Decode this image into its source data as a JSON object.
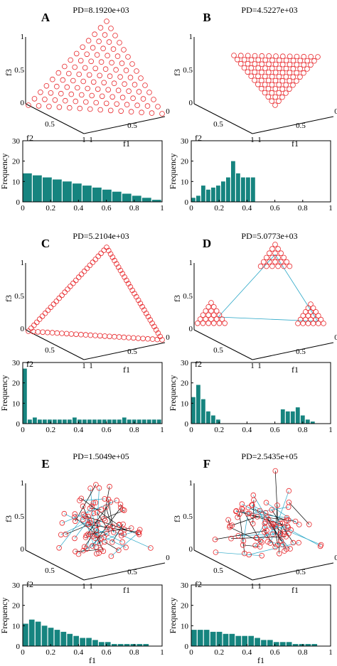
{
  "figure": {
    "panel_count": 6
  },
  "colors": {
    "bar": "#16847f",
    "marker": "#e8282c",
    "link": "#2aa7c7",
    "axis": "#000000"
  },
  "chart_data": [
    {
      "panel": "A",
      "title": "PD=8.1920e+03",
      "type": "scatter",
      "scatter_axes": {
        "f1": "f1",
        "f2": "f2",
        "f3": "f3",
        "ticks": [
          "0",
          "0.5",
          "1"
        ]
      },
      "scatter_layout": "uniform-grid-triangle",
      "histogram": {
        "type": "bar",
        "ylabel": "Frequency",
        "xlim": [
          0,
          1
        ],
        "ylim": [
          0,
          30
        ],
        "xticks": [
          "0",
          "0.2",
          "0.4",
          "0.6",
          "0.8",
          "1"
        ],
        "yticks": [
          "0",
          "10",
          "20",
          "30"
        ],
        "bin_width": 0.0714,
        "values": [
          14,
          13,
          12,
          11,
          10,
          9,
          8,
          7,
          6,
          5,
          4,
          3,
          2,
          1
        ]
      }
    },
    {
      "panel": "B",
      "title": "PD=4.5227e+03",
      "type": "scatter",
      "scatter_axes": {
        "f1": "f1",
        "f2": "f2",
        "f3": "f3",
        "ticks": [
          "0",
          "0.5",
          "1"
        ]
      },
      "scatter_layout": "dense-small-triangle",
      "histogram": {
        "type": "bar",
        "ylabel": "Frequency",
        "xlim": [
          0,
          1
        ],
        "ylim": [
          0,
          30
        ],
        "xticks": [
          "0",
          "0.2",
          "0.4",
          "0.6",
          "0.8",
          "1"
        ],
        "yticks": [
          "0",
          "10",
          "20",
          "30"
        ],
        "bin_width": 0.0357,
        "values": [
          2,
          3,
          8,
          6,
          7,
          8,
          10,
          12,
          20,
          14,
          12,
          12,
          12
        ]
      }
    },
    {
      "panel": "C",
      "title": "PD=5.2104e+03",
      "type": "scatter",
      "scatter_axes": {
        "f1": "f1",
        "f2": "f2",
        "f3": "f3",
        "ticks": [
          "0",
          "0.5",
          "1"
        ]
      },
      "scatter_layout": "triangle-boundary",
      "histogram": {
        "type": "bar",
        "ylabel": "Frequency",
        "xlim": [
          0,
          1
        ],
        "ylim": [
          0,
          30
        ],
        "xticks": [
          "0",
          "0.2",
          "0.4",
          "0.6",
          "0.8",
          "1"
        ],
        "yticks": [
          "0",
          "10",
          "20",
          "30"
        ],
        "bin_width": 0.0357,
        "values": [
          27,
          2,
          3,
          2,
          2,
          2,
          2,
          2,
          2,
          2,
          3,
          2,
          2,
          2,
          2,
          2,
          2,
          2,
          2,
          2,
          3,
          2,
          2,
          2,
          2,
          2,
          2,
          2
        ]
      }
    },
    {
      "panel": "D",
      "title": "PD=5.0773e+03",
      "type": "scatter",
      "scatter_axes": {
        "f1": "f1",
        "f2": "f2",
        "f3": "f3",
        "ticks": [
          "0",
          "0.5",
          "1"
        ]
      },
      "scatter_layout": "three-corner-clusters",
      "histogram": {
        "type": "bar",
        "ylabel": "Frequency",
        "xlim": [
          0,
          1
        ],
        "ylim": [
          0,
          30
        ],
        "xticks": [
          "0",
          "0.2",
          "0.4",
          "0.6",
          "0.8",
          "1"
        ],
        "yticks": [
          "0",
          "10",
          "20",
          "30"
        ],
        "bin_width": 0.0357,
        "values": [
          13,
          19,
          12,
          6,
          4,
          2,
          0,
          0,
          0,
          0,
          0,
          0,
          0,
          0,
          0,
          0,
          0,
          0,
          7,
          6,
          6,
          8,
          4,
          2,
          1
        ]
      }
    },
    {
      "panel": "E",
      "title": "PD=1.5049e+05",
      "type": "scatter",
      "scatter_axes": {
        "f1": "f1",
        "f2": "f2",
        "f3": "f3",
        "ticks": [
          "0",
          "0.5",
          "1"
        ]
      },
      "scatter_layout": "irregular-linked",
      "histogram": {
        "type": "bar",
        "ylabel": "Frequency",
        "xlabel": "f1",
        "xlim": [
          0,
          1
        ],
        "ylim": [
          0,
          30
        ],
        "xticks": [
          "0",
          "0.2",
          "0.4",
          "0.6",
          "0.8",
          "1"
        ],
        "yticks": [
          "0",
          "10",
          "20",
          "30"
        ],
        "bin_width": 0.0455,
        "values": [
          11,
          13,
          12,
          10,
          9,
          8,
          7,
          6,
          5,
          4,
          4,
          3,
          2,
          2,
          1,
          1,
          1,
          1,
          1,
          1
        ]
      }
    },
    {
      "panel": "F",
      "title": "PD=2.5435e+05",
      "type": "scatter",
      "scatter_axes": {
        "f1": "f1",
        "f2": "f2",
        "f3": "f3",
        "ticks": [
          "0",
          "0.5",
          "1"
        ]
      },
      "scatter_layout": "irregular-linked",
      "histogram": {
        "type": "bar",
        "ylabel": "Frequency",
        "xlabel": "f1",
        "xlim": [
          0,
          1
        ],
        "ylim": [
          0,
          30
        ],
        "xticks": [
          "0",
          "0.2",
          "0.4",
          "0.6",
          "0.8",
          "1"
        ],
        "yticks": [
          "0",
          "10",
          "20",
          "30"
        ],
        "bin_width": 0.0455,
        "values": [
          8,
          8,
          8,
          7,
          7,
          6,
          6,
          5,
          5,
          5,
          4,
          3,
          3,
          2,
          2,
          2,
          1,
          1,
          1,
          1
        ]
      }
    }
  ]
}
